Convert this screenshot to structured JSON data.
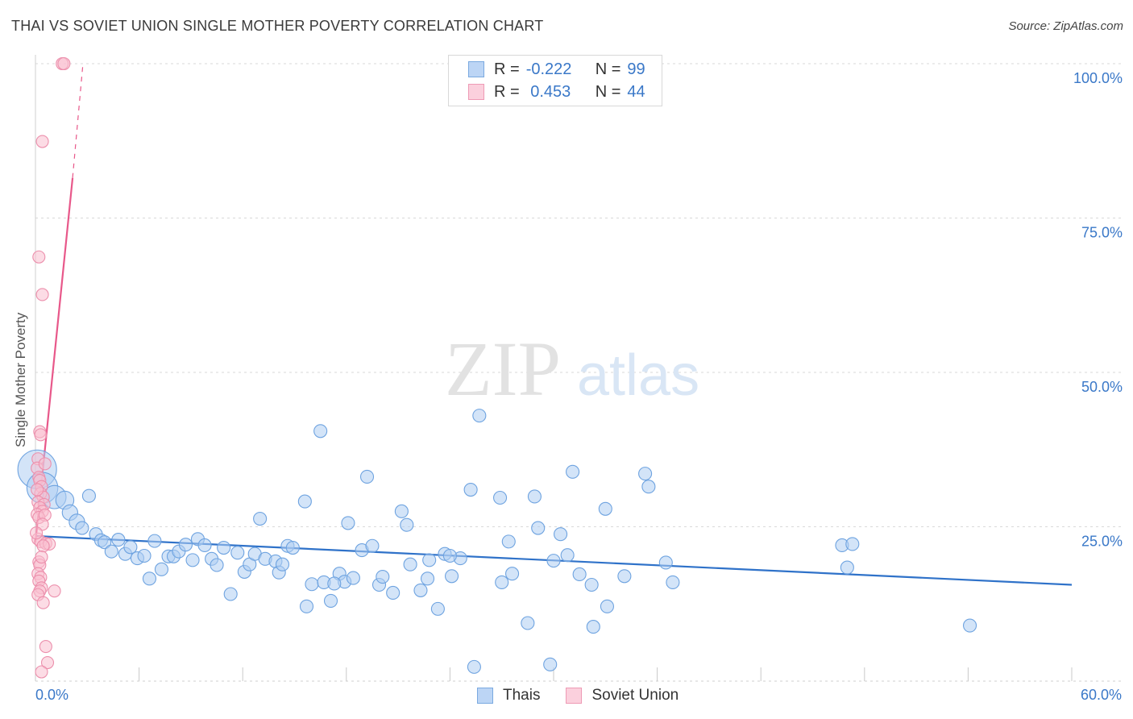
{
  "header": {
    "title": "THAI VS SOVIET UNION SINGLE MOTHER POVERTY CORRELATION CHART",
    "source": "Source: ZipAtlas.com"
  },
  "legend": {
    "rows": [
      {
        "r_label": "R =",
        "r_value": "-0.222",
        "n_label": "N =",
        "n_value": "99"
      },
      {
        "r_label": "R =",
        "r_value": " 0.453",
        "n_label": "N =",
        "n_value": "44"
      }
    ],
    "bottom": [
      "Thais",
      "Soviet Union"
    ]
  },
  "colors": {
    "thai_fill": "#aecdf2",
    "thai_stroke": "#6ea3e0",
    "thai_line": "#2f72c9",
    "soviet_fill": "#f9bfd0",
    "soviet_stroke": "#ec8fac",
    "soviet_line": "#e8588a",
    "tick_label": "#3a78c8",
    "grid": "#d9d9d9"
  },
  "chart_data": {
    "type": "scatter",
    "title": "THAI VS SOVIET UNION SINGLE MOTHER POVERTY CORRELATION CHART",
    "xlabel": "",
    "ylabel": "Single Mother Poverty",
    "xlim": [
      0,
      60
    ],
    "ylim": [
      0,
      100
    ],
    "x_tick_labels": [
      "0.0%",
      "60.0%"
    ],
    "y_ticks": [
      25,
      50,
      75,
      100
    ],
    "y_tick_labels": [
      "25.0%",
      "50.0%",
      "75.0%",
      "100.0%"
    ],
    "watermark": [
      "ZIP",
      "atlas"
    ],
    "series": [
      {
        "name": "Thais",
        "r": -0.222,
        "n": 99,
        "trend": {
          "x": [
            0,
            60
          ],
          "y": [
            23.5,
            15.6
          ]
        },
        "points": [
          {
            "x": 0.1,
            "y": 34.3,
            "s": 3
          },
          {
            "x": 0.4,
            "y": 31.3,
            "s": 2.4
          },
          {
            "x": 1.1,
            "y": 29.8,
            "s": 1.8
          },
          {
            "x": 1.7,
            "y": 29.3,
            "s": 1.4
          },
          {
            "x": 3.1,
            "y": 30.0,
            "s": 1
          },
          {
            "x": 2.0,
            "y": 27.3,
            "s": 1.2
          },
          {
            "x": 2.4,
            "y": 25.8,
            "s": 1.2
          },
          {
            "x": 2.7,
            "y": 24.8,
            "s": 1
          },
          {
            "x": 3.5,
            "y": 23.8,
            "s": 1
          },
          {
            "x": 3.8,
            "y": 22.8,
            "s": 1
          },
          {
            "x": 4.0,
            "y": 22.5,
            "s": 1
          },
          {
            "x": 4.4,
            "y": 21.0,
            "s": 1
          },
          {
            "x": 4.8,
            "y": 22.9,
            "s": 1
          },
          {
            "x": 5.2,
            "y": 20.6,
            "s": 1
          },
          {
            "x": 5.5,
            "y": 21.7,
            "s": 1
          },
          {
            "x": 5.9,
            "y": 19.9,
            "s": 1
          },
          {
            "x": 6.3,
            "y": 20.3,
            "s": 1
          },
          {
            "x": 6.6,
            "y": 16.6,
            "s": 1
          },
          {
            "x": 6.9,
            "y": 22.7,
            "s": 1
          },
          {
            "x": 7.3,
            "y": 18.1,
            "s": 1
          },
          {
            "x": 7.7,
            "y": 20.2,
            "s": 1
          },
          {
            "x": 8.0,
            "y": 20.2,
            "s": 1
          },
          {
            "x": 8.3,
            "y": 21.0,
            "s": 1
          },
          {
            "x": 8.7,
            "y": 22.1,
            "s": 1
          },
          {
            "x": 9.1,
            "y": 19.6,
            "s": 1
          },
          {
            "x": 9.4,
            "y": 23.0,
            "s": 1
          },
          {
            "x": 9.8,
            "y": 22.0,
            "s": 1
          },
          {
            "x": 10.2,
            "y": 19.8,
            "s": 1
          },
          {
            "x": 10.5,
            "y": 18.8,
            "s": 1
          },
          {
            "x": 10.9,
            "y": 21.6,
            "s": 1
          },
          {
            "x": 11.3,
            "y": 14.1,
            "s": 1
          },
          {
            "x": 11.7,
            "y": 20.8,
            "s": 1
          },
          {
            "x": 12.1,
            "y": 17.7,
            "s": 1
          },
          {
            "x": 12.4,
            "y": 18.9,
            "s": 1
          },
          {
            "x": 12.7,
            "y": 20.6,
            "s": 1
          },
          {
            "x": 13.0,
            "y": 26.3,
            "s": 1
          },
          {
            "x": 13.3,
            "y": 19.8,
            "s": 1
          },
          {
            "x": 13.9,
            "y": 19.4,
            "s": 1
          },
          {
            "x": 14.1,
            "y": 17.6,
            "s": 1
          },
          {
            "x": 14.3,
            "y": 18.9,
            "s": 1
          },
          {
            "x": 14.6,
            "y": 21.9,
            "s": 1
          },
          {
            "x": 14.9,
            "y": 21.6,
            "s": 1
          },
          {
            "x": 15.6,
            "y": 29.1,
            "s": 1
          },
          {
            "x": 15.7,
            "y": 12.1,
            "s": 1
          },
          {
            "x": 16.0,
            "y": 15.7,
            "s": 1
          },
          {
            "x": 16.5,
            "y": 40.5,
            "s": 1
          },
          {
            "x": 16.7,
            "y": 16.0,
            "s": 1
          },
          {
            "x": 17.1,
            "y": 13.0,
            "s": 1
          },
          {
            "x": 17.6,
            "y": 17.4,
            "s": 1
          },
          {
            "x": 17.9,
            "y": 16.1,
            "s": 1
          },
          {
            "x": 18.1,
            "y": 25.6,
            "s": 1
          },
          {
            "x": 18.4,
            "y": 16.7,
            "s": 1
          },
          {
            "x": 18.9,
            "y": 21.2,
            "s": 1
          },
          {
            "x": 19.2,
            "y": 33.1,
            "s": 1
          },
          {
            "x": 19.5,
            "y": 21.9,
            "s": 1
          },
          {
            "x": 19.9,
            "y": 15.6,
            "s": 1
          },
          {
            "x": 20.1,
            "y": 16.9,
            "s": 1
          },
          {
            "x": 20.7,
            "y": 14.3,
            "s": 1
          },
          {
            "x": 21.2,
            "y": 27.5,
            "s": 1
          },
          {
            "x": 21.5,
            "y": 25.3,
            "s": 1
          },
          {
            "x": 21.7,
            "y": 18.9,
            "s": 1
          },
          {
            "x": 22.3,
            "y": 14.7,
            "s": 1
          },
          {
            "x": 22.7,
            "y": 16.6,
            "s": 1
          },
          {
            "x": 22.8,
            "y": 19.6,
            "s": 1
          },
          {
            "x": 23.3,
            "y": 11.7,
            "s": 1
          },
          {
            "x": 23.7,
            "y": 20.6,
            "s": 1
          },
          {
            "x": 24.1,
            "y": 17.0,
            "s": 1
          },
          {
            "x": 24.6,
            "y": 19.9,
            "s": 1
          },
          {
            "x": 25.2,
            "y": 31.0,
            "s": 1
          },
          {
            "x": 25.4,
            "y": 2.3,
            "s": 1
          },
          {
            "x": 26.9,
            "y": 29.7,
            "s": 1
          },
          {
            "x": 27.0,
            "y": 16.0,
            "s": 1
          },
          {
            "x": 27.4,
            "y": 22.6,
            "s": 1
          },
          {
            "x": 27.6,
            "y": 17.4,
            "s": 1
          },
          {
            "x": 28.5,
            "y": 9.4,
            "s": 1
          },
          {
            "x": 28.9,
            "y": 29.9,
            "s": 1
          },
          {
            "x": 29.1,
            "y": 24.8,
            "s": 1
          },
          {
            "x": 29.8,
            "y": 2.7,
            "s": 1
          },
          {
            "x": 30.0,
            "y": 19.5,
            "s": 1
          },
          {
            "x": 30.4,
            "y": 23.8,
            "s": 1
          },
          {
            "x": 30.8,
            "y": 20.4,
            "s": 1
          },
          {
            "x": 31.1,
            "y": 33.9,
            "s": 1
          },
          {
            "x": 31.5,
            "y": 17.3,
            "s": 1
          },
          {
            "x": 32.2,
            "y": 15.6,
            "s": 1
          },
          {
            "x": 32.3,
            "y": 8.8,
            "s": 1
          },
          {
            "x": 33.1,
            "y": 12.1,
            "s": 1
          },
          {
            "x": 34.1,
            "y": 17.0,
            "s": 1
          },
          {
            "x": 35.3,
            "y": 33.6,
            "s": 1
          },
          {
            "x": 36.5,
            "y": 19.2,
            "s": 1
          },
          {
            "x": 36.9,
            "y": 16.0,
            "s": 1
          },
          {
            "x": 35.5,
            "y": 31.5,
            "s": 1
          },
          {
            "x": 33.0,
            "y": 27.9,
            "s": 1
          },
          {
            "x": 46.7,
            "y": 22.0,
            "s": 1
          },
          {
            "x": 47.0,
            "y": 18.4,
            "s": 1
          },
          {
            "x": 47.3,
            "y": 22.2,
            "s": 1
          },
          {
            "x": 54.1,
            "y": 9.0,
            "s": 1
          },
          {
            "x": 25.7,
            "y": 43.0,
            "s": 1
          },
          {
            "x": 17.3,
            "y": 15.8,
            "s": 1
          },
          {
            "x": 24.0,
            "y": 20.3,
            "s": 1
          }
        ]
      },
      {
        "name": "Soviet Union",
        "r": 0.453,
        "n": 44,
        "trend": {
          "x": [
            0,
            2.15
          ],
          "y": [
            22.5,
            81.5
          ]
        },
        "trend_dashed": {
          "x": [
            2.15,
            2.75
          ],
          "y": [
            81.5,
            100
          ]
        },
        "points": [
          {
            "x": 1.55,
            "y": 100.0,
            "s": 1
          },
          {
            "x": 1.65,
            "y": 100.0,
            "s": 1
          },
          {
            "x": 0.4,
            "y": 87.4,
            "s": 1
          },
          {
            "x": 0.2,
            "y": 68.7,
            "s": 1
          },
          {
            "x": 0.4,
            "y": 62.6,
            "s": 1
          },
          {
            "x": 0.25,
            "y": 40.4,
            "s": 1
          },
          {
            "x": 0.3,
            "y": 39.9,
            "s": 1
          },
          {
            "x": 0.15,
            "y": 36.0,
            "s": 1
          },
          {
            "x": 0.1,
            "y": 34.5,
            "s": 1
          },
          {
            "x": 0.2,
            "y": 33.0,
            "s": 1
          },
          {
            "x": 0.25,
            "y": 32.5,
            "s": 1
          },
          {
            "x": 0.35,
            "y": 31.5,
            "s": 1
          },
          {
            "x": 0.3,
            "y": 30.4,
            "s": 1
          },
          {
            "x": 0.45,
            "y": 29.8,
            "s": 1
          },
          {
            "x": 0.15,
            "y": 29.0,
            "s": 1
          },
          {
            "x": 0.5,
            "y": 28.6,
            "s": 1
          },
          {
            "x": 0.25,
            "y": 28.1,
            "s": 1
          },
          {
            "x": 0.4,
            "y": 27.5,
            "s": 1
          },
          {
            "x": 0.1,
            "y": 27.0,
            "s": 1
          },
          {
            "x": 0.2,
            "y": 26.5,
            "s": 1
          },
          {
            "x": 0.55,
            "y": 26.9,
            "s": 1
          },
          {
            "x": 0.15,
            "y": 23.0,
            "s": 1
          },
          {
            "x": 0.3,
            "y": 22.6,
            "s": 1
          },
          {
            "x": 0.6,
            "y": 22.3,
            "s": 1
          },
          {
            "x": 0.8,
            "y": 22.2,
            "s": 1
          },
          {
            "x": 0.45,
            "y": 21.9,
            "s": 1
          },
          {
            "x": 0.2,
            "y": 19.3,
            "s": 1
          },
          {
            "x": 0.25,
            "y": 18.8,
            "s": 1
          },
          {
            "x": 0.15,
            "y": 17.4,
            "s": 1
          },
          {
            "x": 0.3,
            "y": 16.8,
            "s": 1
          },
          {
            "x": 0.2,
            "y": 16.2,
            "s": 1
          },
          {
            "x": 0.35,
            "y": 15.1,
            "s": 1
          },
          {
            "x": 0.25,
            "y": 14.6,
            "s": 1
          },
          {
            "x": 0.15,
            "y": 14.0,
            "s": 1
          },
          {
            "x": 0.45,
            "y": 12.7,
            "s": 1
          },
          {
            "x": 1.1,
            "y": 14.6,
            "s": 1
          },
          {
            "x": 0.6,
            "y": 5.6,
            "s": 1
          },
          {
            "x": 0.7,
            "y": 3.0,
            "s": 1
          },
          {
            "x": 0.35,
            "y": 1.5,
            "s": 1
          },
          {
            "x": 0.1,
            "y": 31.0,
            "s": 1
          },
          {
            "x": 0.4,
            "y": 25.4,
            "s": 1
          },
          {
            "x": 0.05,
            "y": 24.0,
            "s": 1
          },
          {
            "x": 0.35,
            "y": 20.1,
            "s": 1
          },
          {
            "x": 0.55,
            "y": 35.2,
            "s": 1
          }
        ]
      }
    ]
  }
}
